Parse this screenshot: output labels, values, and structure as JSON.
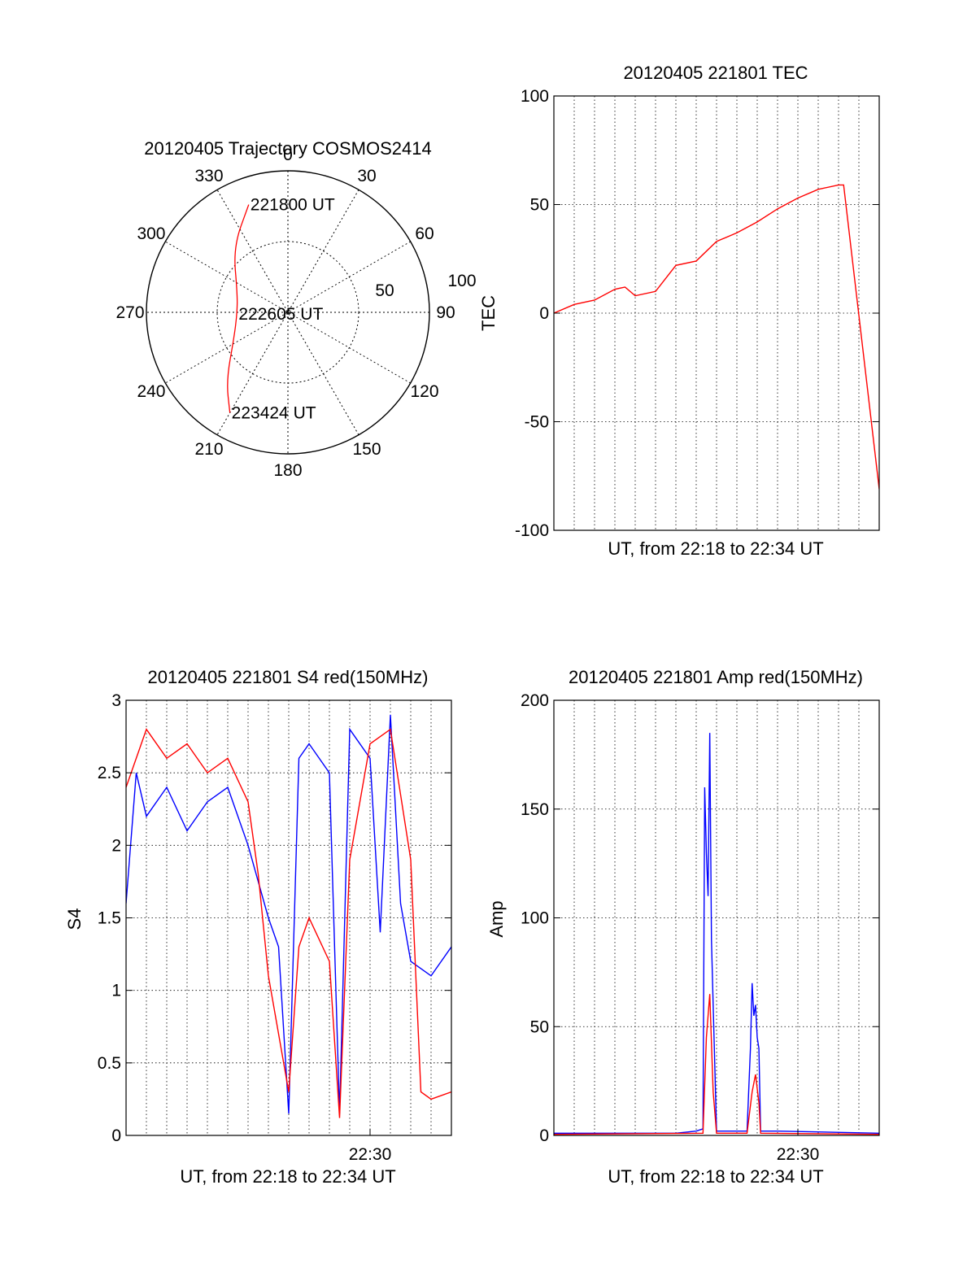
{
  "chart_data": [
    {
      "type": "polar",
      "title": "20120405 Trajectory COSMOS2414",
      "angle_labels": [
        "0",
        "30",
        "60",
        "90",
        "120",
        "150",
        "180",
        "210",
        "240",
        "270",
        "300",
        "330"
      ],
      "radial_labels": [
        "50",
        "100"
      ],
      "rlim": [
        0,
        100
      ],
      "grid": true,
      "trajectory": {
        "color": "#ff0000",
        "points": [
          {
            "az": 340,
            "r": 81
          },
          {
            "az": 320,
            "r": 60
          },
          {
            "az": 290,
            "r": 38
          },
          {
            "az": 268,
            "r": 36
          },
          {
            "az": 245,
            "r": 42
          },
          {
            "az": 222,
            "r": 65
          },
          {
            "az": 210,
            "r": 82
          }
        ]
      },
      "annotations": [
        {
          "text": "221800 UT",
          "az": 340,
          "r": 81
        },
        {
          "text": "222605 UT",
          "az": 268,
          "r": 36
        },
        {
          "text": "223424 UT",
          "az": 210,
          "r": 82
        }
      ]
    },
    {
      "type": "line",
      "title": "20120405 221801 TEC",
      "xlabel": "UT, from 22:18 to 22:34 UT",
      "ylabel": "TEC",
      "xlim": [
        "22:18",
        "22:34"
      ],
      "ylim": [
        -100,
        100
      ],
      "yticks": [
        "100",
        "50",
        "0",
        "-50",
        "-100"
      ],
      "grid": true,
      "series": [
        {
          "color": "#ff0000",
          "x": [
            "22:18:00",
            "22:19:00",
            "22:20:00",
            "22:21:00",
            "22:21:30",
            "22:22:00",
            "22:23:00",
            "22:24:00",
            "22:25:00",
            "22:26:00",
            "22:27:00",
            "22:28:00",
            "22:29:00",
            "22:30:00",
            "22:31:00",
            "22:32:00",
            "22:32:15",
            "22:34:00"
          ],
          "y": [
            0,
            4,
            6,
            11,
            12,
            8,
            10,
            22,
            24,
            33,
            37,
            42,
            48,
            53,
            57,
            59,
            59,
            -81
          ]
        }
      ]
    },
    {
      "type": "line",
      "title": "20120405 221801 S4 red(150MHz)",
      "xlabel": "UT, from 22:18 to 22:34 UT",
      "ylabel": "S4",
      "xlim": [
        "22:18",
        "22:34"
      ],
      "ylim": [
        0,
        3
      ],
      "yticks": [
        "3",
        "2.5",
        "2",
        "1.5",
        "1",
        "0.5",
        "0"
      ],
      "xticks": [
        "22:30"
      ],
      "grid": true,
      "series": [
        {
          "color": "#0000ff",
          "x": [
            "22:18:00",
            "22:18:30",
            "22:19:00",
            "22:20:00",
            "22:21:00",
            "22:22:00",
            "22:23:00",
            "22:24:00",
            "22:25:00",
            "22:25:30",
            "22:26:00",
            "22:26:30",
            "22:27:00",
            "22:28:00",
            "22:28:30",
            "22:29:00",
            "22:30:00",
            "22:30:30",
            "22:31:00",
            "22:31:30",
            "22:32:00",
            "22:33:00",
            "22:34:00"
          ],
          "y": [
            1.6,
            2.5,
            2.2,
            2.4,
            2.1,
            2.3,
            2.4,
            2.0,
            1.5,
            1.3,
            0.15,
            2.6,
            2.7,
            2.5,
            0.15,
            2.8,
            2.6,
            1.4,
            2.9,
            1.6,
            1.2,
            1.1,
            1.3
          ]
        },
        {
          "color": "#ff0000",
          "x": [
            "22:18:00",
            "22:19:00",
            "22:20:00",
            "22:21:00",
            "22:22:00",
            "22:23:00",
            "22:24:00",
            "22:24:30",
            "22:25:00",
            "22:26:00",
            "22:26:30",
            "22:27:00",
            "22:28:00",
            "22:28:30",
            "22:29:00",
            "22:30:00",
            "22:31:00",
            "22:32:00",
            "22:32:30",
            "22:33:00",
            "22:34:00"
          ],
          "y": [
            2.4,
            2.8,
            2.6,
            2.7,
            2.5,
            2.6,
            2.3,
            1.8,
            1.1,
            0.3,
            1.3,
            1.5,
            1.2,
            0.12,
            1.9,
            2.7,
            2.8,
            1.9,
            0.3,
            0.25,
            0.3
          ]
        }
      ]
    },
    {
      "type": "line",
      "title": "20120405 221801 Amp red(150MHz)",
      "xlabel": "UT, from 22:18 to 22:34 UT",
      "ylabel": "Amp",
      "xlim": [
        "22:18",
        "22:34"
      ],
      "ylim": [
        0,
        200
      ],
      "yticks": [
        "200",
        "150",
        "100",
        "50",
        "0"
      ],
      "xticks": [
        "22:30"
      ],
      "grid": true,
      "series": [
        {
          "color": "#0000ff",
          "x": [
            "22:18:00",
            "22:24:00",
            "22:25:00",
            "22:25:20",
            "22:25:25",
            "22:25:30",
            "22:25:35",
            "22:25:40",
            "22:25:45",
            "22:25:50",
            "22:26:00",
            "22:27:30",
            "22:27:40",
            "22:27:45",
            "22:27:50",
            "22:27:55",
            "22:28:00",
            "22:28:05",
            "22:28:10",
            "22:29:00",
            "22:34:00"
          ],
          "y": [
            1,
            1,
            2,
            3,
            160,
            130,
            110,
            185,
            90,
            60,
            2,
            2,
            40,
            70,
            55,
            60,
            45,
            40,
            2,
            2,
            1
          ]
        },
        {
          "color": "#ff0000",
          "x": [
            "22:18:00",
            "22:25:20",
            "22:25:30",
            "22:25:40",
            "22:25:50",
            "22:26:00",
            "22:27:30",
            "22:27:45",
            "22:27:55",
            "22:28:05",
            "22:28:10",
            "22:34:00"
          ],
          "y": [
            0.5,
            1,
            45,
            65,
            20,
            1,
            1,
            20,
            28,
            15,
            1,
            0.5
          ]
        }
      ]
    }
  ]
}
